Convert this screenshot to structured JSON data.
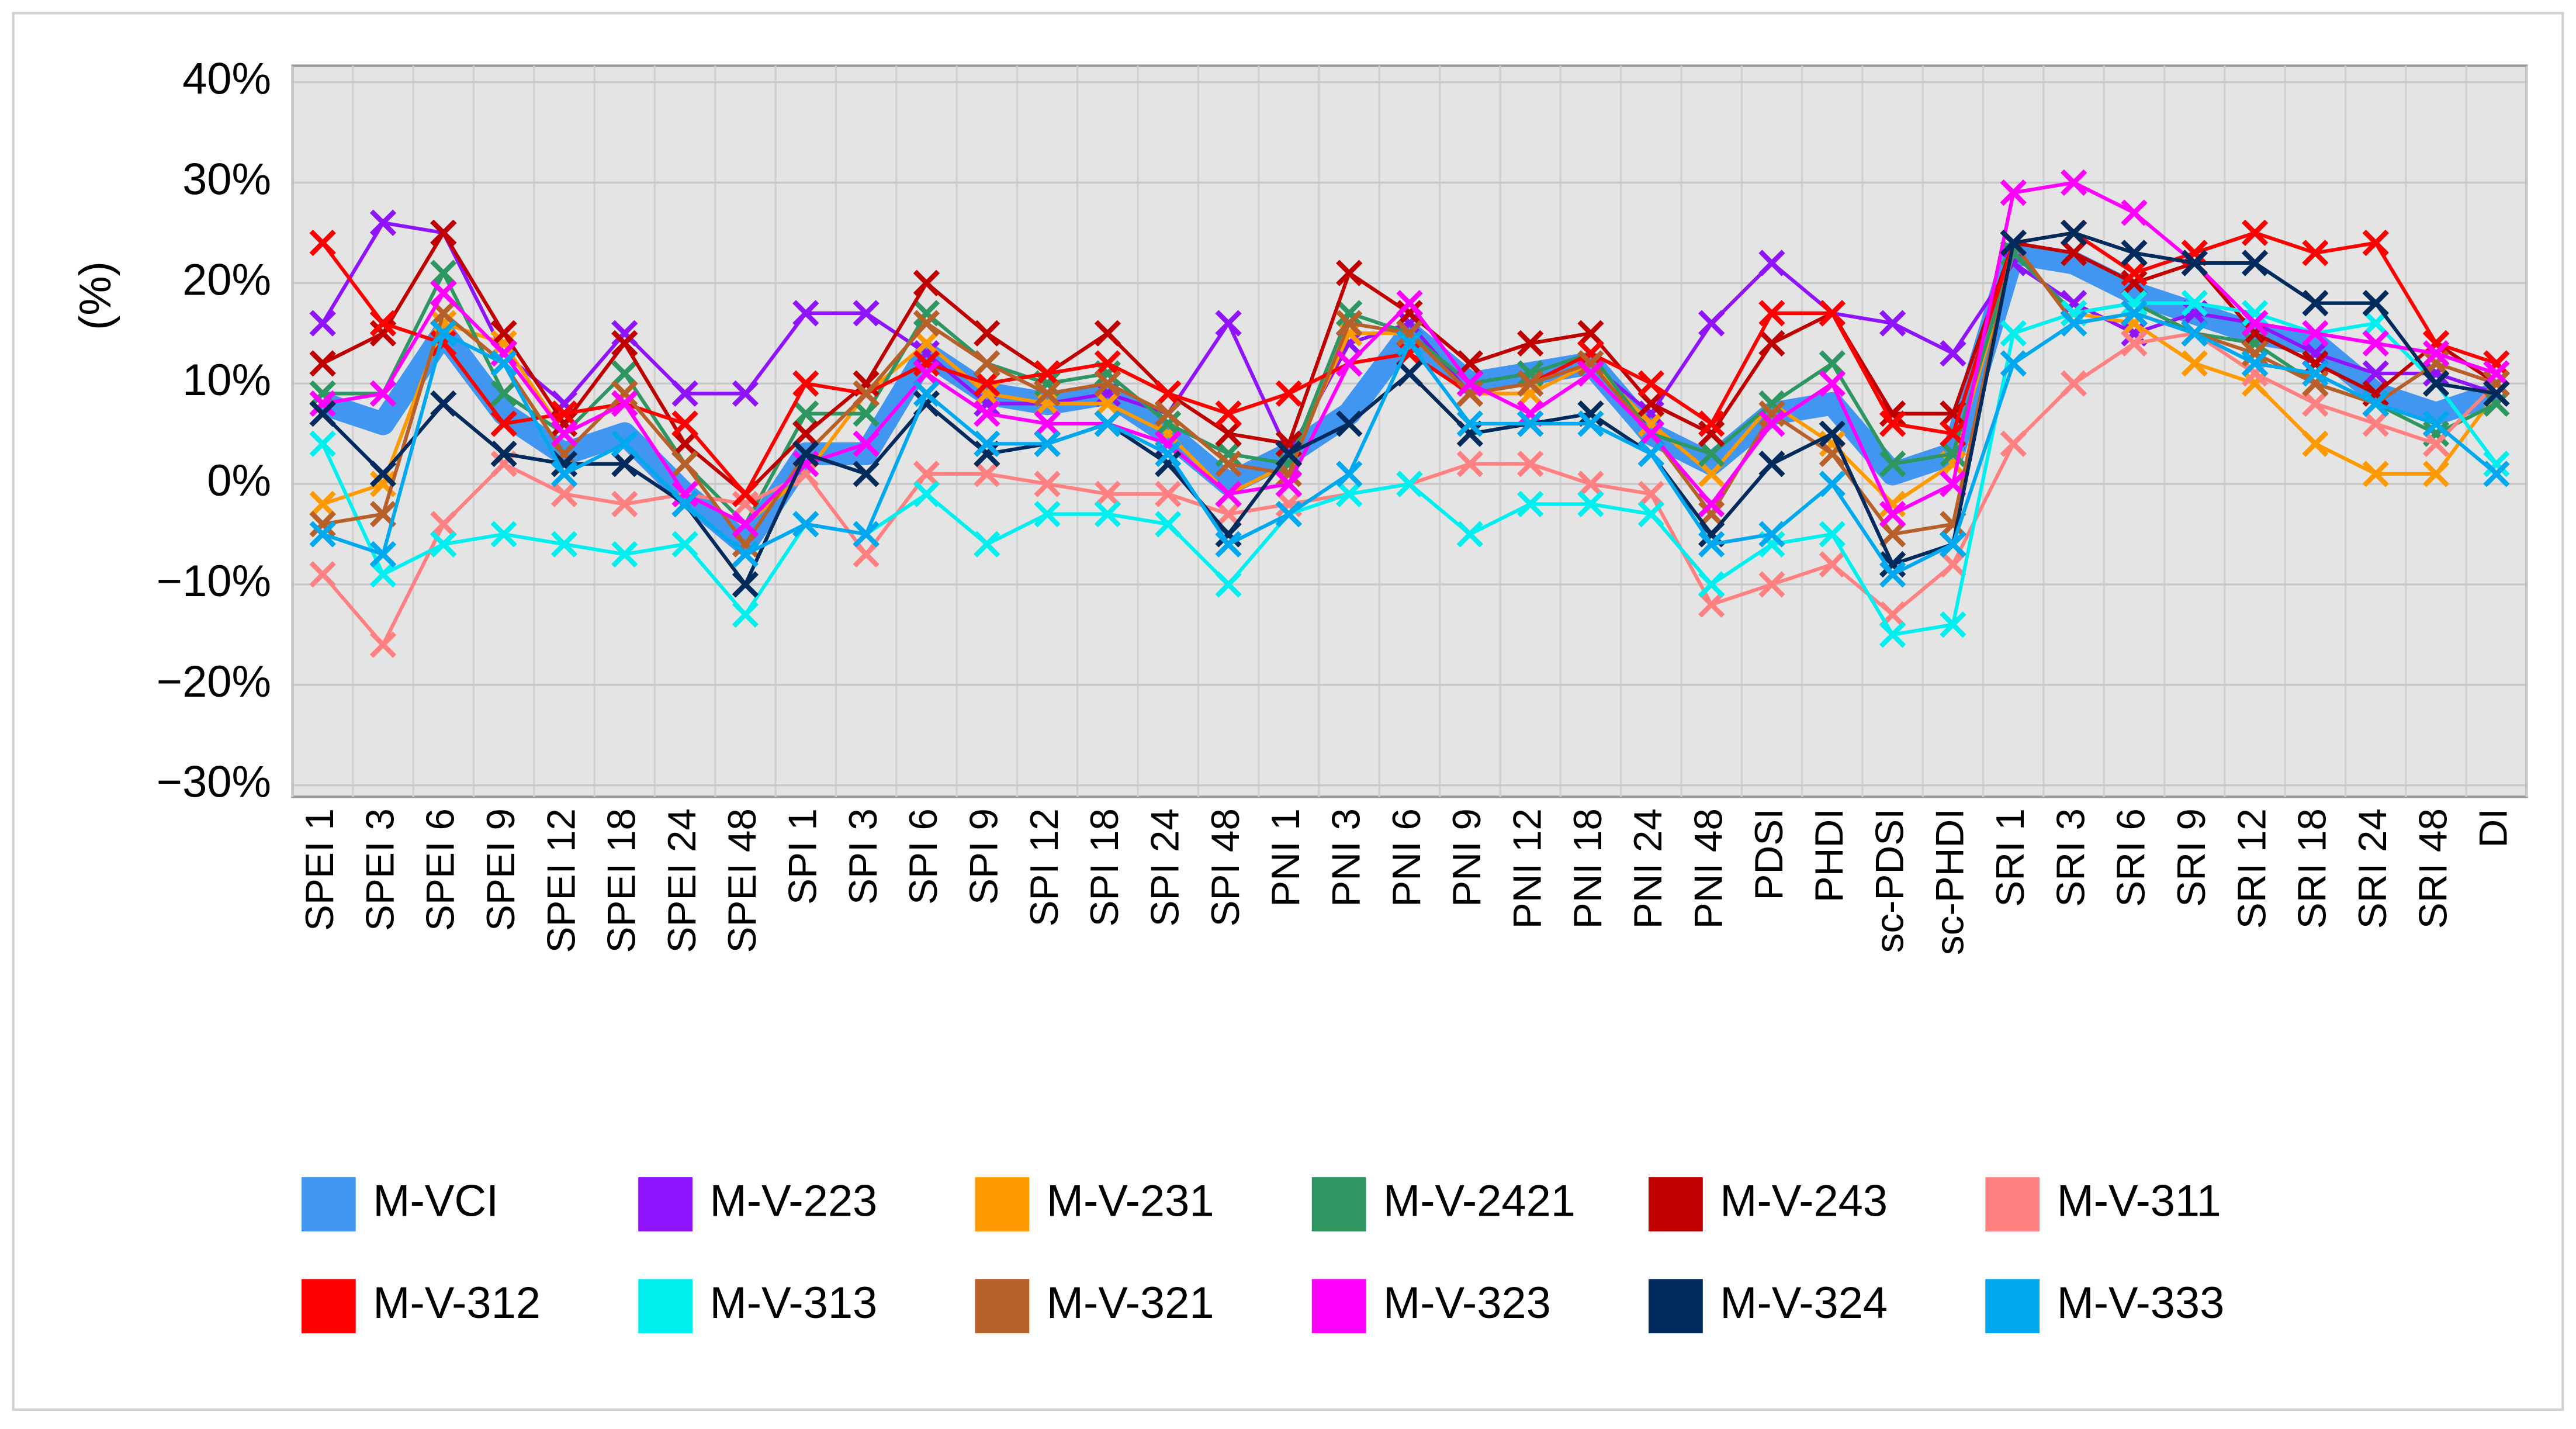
{
  "chart_data": {
    "type": "line",
    "y_label": "(%)",
    "categories": [
      "SPEI 1",
      "SPEI 3",
      "SPEI 6",
      "SPEI 9",
      "SPEI 12",
      "SPEI 18",
      "SPEI 24",
      "SPEI 48",
      "SPI 1",
      "SPI 3",
      "SPI 6",
      "SPI 9",
      "SPI 12",
      "SPI 18",
      "SPI 24",
      "SPI 48",
      "PNI 1",
      "PNI 3",
      "PNI 6",
      "PNI 9",
      "PNI 12",
      "PNI 18",
      "PNI 24",
      "PNI 48",
      "PDSI",
      "PHDI",
      "sc-PDSI",
      "sc-PHDI",
      "SRI 1",
      "SRI 3",
      "SRI 6",
      "SRI 9",
      "SRI 12",
      "SRI 18",
      "SRI 24",
      "SRI 48",
      "DI"
    ],
    "ylim": [
      -30,
      40
    ],
    "yticks": [
      {
        "value": -30,
        "label": "−30%"
      },
      {
        "value": -20,
        "label": "−20%"
      },
      {
        "value": -10,
        "label": "−10%"
      },
      {
        "value": 0,
        "label": "0%"
      },
      {
        "value": 10,
        "label": "10%"
      },
      {
        "value": 20,
        "label": "20%"
      },
      {
        "value": 30,
        "label": "30%"
      },
      {
        "value": 40,
        "label": "40%"
      }
    ],
    "grid": true,
    "legend": "bottom",
    "series": [
      {
        "name": "M-VCI",
        "color": "#4096f0",
        "values": [
          8,
          6,
          15,
          7,
          3,
          5,
          -1,
          -6,
          3,
          3,
          13,
          9,
          8,
          9,
          5,
          0,
          3,
          7,
          15,
          10,
          11,
          12,
          5,
          2,
          7,
          8,
          1,
          3,
          23,
          22,
          19,
          17,
          15,
          14,
          9,
          7,
          9
        ]
      },
      {
        "name": "M-V-223",
        "color": "#9013fe",
        "values": [
          16,
          26,
          25,
          13,
          8,
          15,
          9,
          9,
          17,
          17,
          13,
          8,
          8,
          9,
          7,
          16,
          3,
          14,
          16,
          9,
          9,
          12,
          7,
          16,
          22,
          17,
          16,
          13,
          22,
          18,
          15,
          17,
          16,
          13,
          11,
          11,
          9
        ]
      },
      {
        "name": "M-V-231",
        "color": "#ff9900",
        "values": [
          -2,
          0,
          16,
          14,
          5,
          8,
          -1,
          -4,
          1,
          9,
          14,
          9,
          8,
          8,
          5,
          -1,
          2,
          15,
          15,
          9,
          9,
          12,
          6,
          1,
          8,
          4,
          -2,
          2,
          23,
          17,
          16,
          12,
          10,
          4,
          1,
          1,
          9
        ]
      },
      {
        "name": "M-V-2421",
        "color": "#2e9660",
        "values": [
          9,
          9,
          21,
          9,
          5,
          11,
          2,
          -4,
          7,
          7,
          17,
          12,
          10,
          11,
          6,
          3,
          2,
          17,
          15,
          10,
          11,
          13,
          5,
          3,
          8,
          12,
          2,
          3,
          23,
          17,
          18,
          15,
          14,
          10,
          8,
          5,
          8
        ]
      },
      {
        "name": "M-V-243",
        "color": "#c00000",
        "values": [
          12,
          15,
          25,
          15,
          6,
          14,
          4,
          -1,
          5,
          10,
          20,
          15,
          11,
          15,
          9,
          5,
          4,
          21,
          17,
          12,
          14,
          15,
          8,
          5,
          14,
          17,
          7,
          7,
          24,
          23,
          20,
          22,
          15,
          12,
          9,
          14,
          10
        ]
      },
      {
        "name": "M-V-311",
        "color": "#ff8080",
        "values": [
          -9,
          -16,
          -4,
          2,
          -1,
          -2,
          -1,
          -2,
          1,
          -7,
          1,
          1,
          0,
          -1,
          -1,
          -3,
          -2,
          -1,
          0,
          2,
          2,
          0,
          -1,
          -12,
          -10,
          -8,
          -13,
          -8,
          4,
          10,
          14,
          15,
          11,
          8,
          6,
          4,
          10
        ]
      },
      {
        "name": "M-V-312",
        "color": "#ff0000",
        "values": [
          24,
          16,
          14,
          6,
          7,
          8,
          6,
          -1,
          10,
          9,
          12,
          10,
          11,
          12,
          9,
          7,
          9,
          12,
          13,
          9,
          10,
          13,
          10,
          6,
          17,
          17,
          6,
          5,
          24,
          25,
          21,
          23,
          25,
          23,
          24,
          14,
          12
        ]
      },
      {
        "name": "M-V-313",
        "color": "#00f0f0",
        "values": [
          4,
          -9,
          -6,
          -5,
          -6,
          -7,
          -6,
          -13,
          -4,
          -5,
          -1,
          -6,
          -3,
          -3,
          -4,
          -10,
          -3,
          -1,
          0,
          -5,
          -2,
          -2,
          -3,
          -10,
          -6,
          -5,
          -15,
          -14,
          15,
          17,
          18,
          18,
          17,
          15,
          16,
          10,
          2
        ]
      },
      {
        "name": "M-V-321",
        "color": "#b8602a",
        "values": [
          -4,
          -3,
          17,
          12,
          3,
          9,
          2,
          -6,
          3,
          9,
          16,
          12,
          9,
          10,
          7,
          2,
          1,
          16,
          15,
          9,
          10,
          12,
          5,
          -3,
          7,
          3,
          -5,
          -4,
          24,
          16,
          17,
          15,
          13,
          10,
          8,
          12,
          10
        ]
      },
      {
        "name": "M-V-323",
        "color": "#ff00ff",
        "values": [
          8,
          9,
          19,
          13,
          5,
          8,
          -1,
          -4,
          2,
          4,
          11,
          7,
          6,
          6,
          4,
          -1,
          0,
          12,
          18,
          10,
          7,
          11,
          5,
          -2,
          6,
          10,
          -3,
          0,
          29,
          30,
          27,
          22,
          16,
          15,
          14,
          13,
          11
        ]
      },
      {
        "name": "M-V-324",
        "color": "#002b5c",
        "values": [
          7,
          1,
          8,
          3,
          2,
          2,
          -2,
          -10,
          3,
          1,
          8,
          3,
          4,
          6,
          2,
          -5,
          3,
          6,
          11,
          5,
          6,
          7,
          3,
          -5,
          2,
          5,
          -8,
          -6,
          24,
          25,
          23,
          22,
          22,
          18,
          18,
          10,
          9
        ]
      },
      {
        "name": "M-V-333",
        "color": "#00a8f0",
        "values": [
          -5,
          -7,
          15,
          12,
          1,
          4,
          -2,
          -7,
          -4,
          -5,
          9,
          4,
          4,
          6,
          3,
          -6,
          -3,
          1,
          14,
          6,
          6,
          6,
          3,
          -6,
          -5,
          0,
          -9,
          -6,
          12,
          16,
          17,
          15,
          12,
          11,
          8,
          6,
          1
        ]
      }
    ]
  }
}
